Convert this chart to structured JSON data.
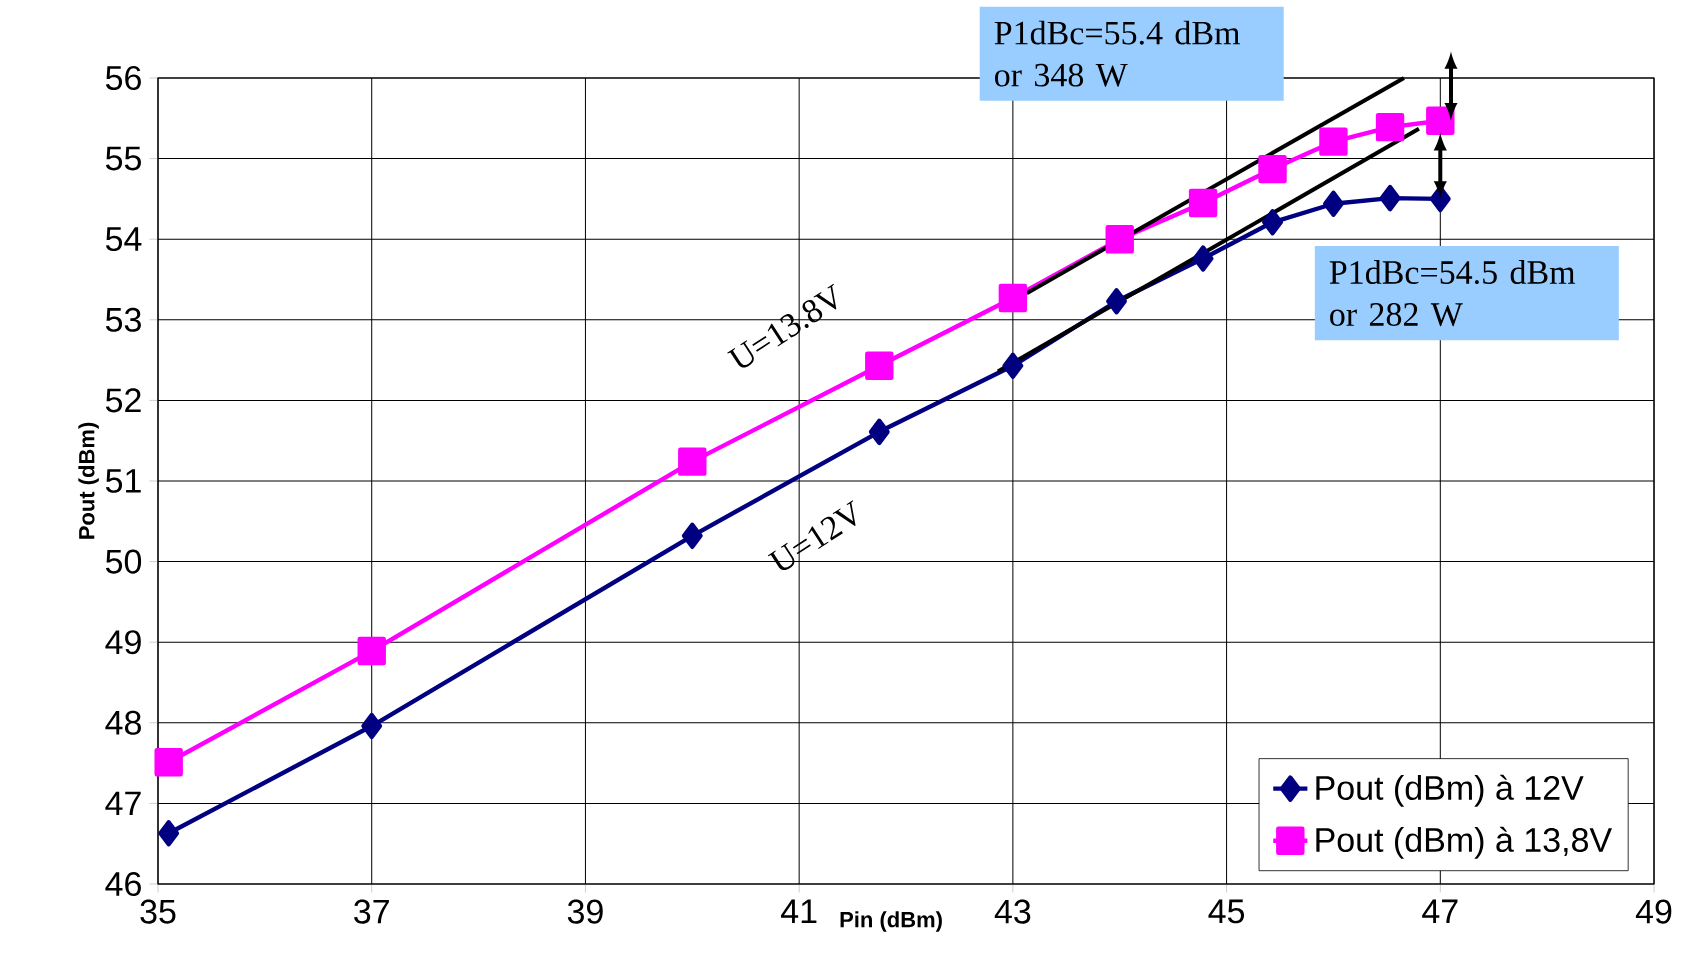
{
  "chart_data": {
    "type": "line",
    "xlabel": "Pin (dBm)",
    "ylabel": "Pout (dBm)",
    "xlim": [
      35,
      49
    ],
    "xticks": [
      35,
      37,
      39,
      41,
      43,
      45,
      47,
      49
    ],
    "ylim": [
      46,
      56
    ],
    "yticks": [
      46,
      47,
      48,
      49,
      50,
      51,
      52,
      53,
      54,
      55,
      56
    ],
    "grid": true,
    "legend": "bottom right",
    "line_style": "solid",
    "series": [
      {
        "name": "Pout (dBm) à 12V",
        "color": "#000080",
        "marker": "diamond",
        "x": [
          35.1,
          37,
          40,
          41.75,
          43,
          43.97,
          44.78,
          45.43,
          46,
          46.53,
          47
        ],
        "values": [
          46.63,
          47.96,
          50.32,
          51.61,
          52.43,
          53.23,
          53.76,
          54.21,
          54.44,
          54.51,
          54.5
        ]
      },
      {
        "name": "Pout (dBm) à 13,8V",
        "color": "#ff00ff",
        "marker": "square",
        "x": [
          35.1,
          37,
          40,
          41.75,
          43,
          44,
          44.78,
          45.43,
          46,
          46.53,
          47
        ],
        "values": [
          47.51,
          48.89,
          51.24,
          52.43,
          53.27,
          54.0,
          54.45,
          54.87,
          55.21,
          55.39,
          55.47
        ]
      },
      {
        "color": "#000000",
        "marker": "none",
        "x": [
          43.13,
          46.66
        ],
        "values": [
          53.33,
          56.0
        ]
      },
      {
        "color": "#000000",
        "marker": "none",
        "x": [
          42.86,
          46.8
        ],
        "values": [
          52.36,
          55.37
        ]
      }
    ],
    "annotations": [
      "P1dBc=55.4 dBm or  348 W",
      "P1dBc=54.5 dBm or  282 W",
      "U=13.8V",
      "U=12V"
    ]
  }
}
